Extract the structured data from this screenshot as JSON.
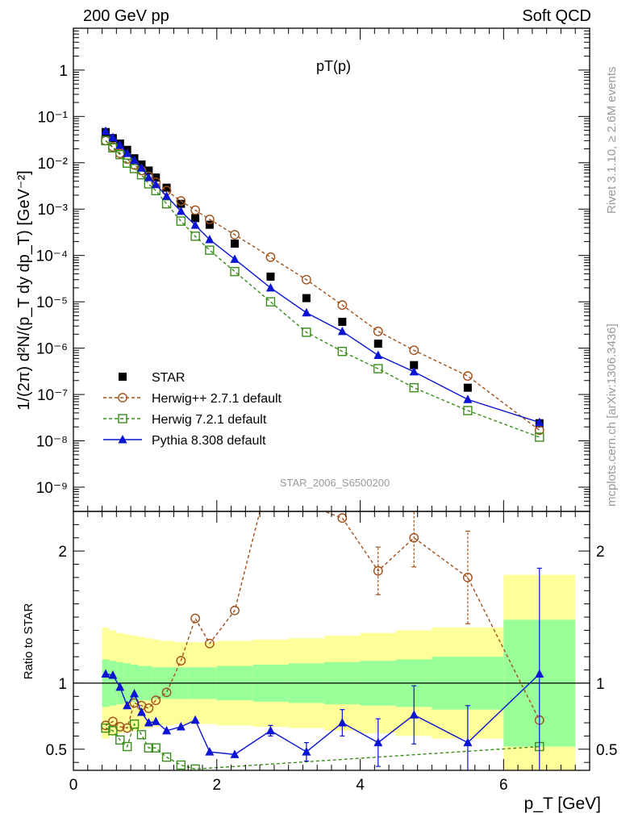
{
  "header": {
    "left": "200 GeV pp",
    "right": "Soft QCD"
  },
  "side_labels": {
    "rivet": "Rivet 3.1.10, ≥ 2.6M events",
    "mcplots": "mcplots.cern.ch [arXiv:1306.3436]"
  },
  "plot_title": "pT(p)",
  "watermark": "STAR_2006_S6500200",
  "colors": {
    "star": "#000000",
    "herwigpp": "#a0501a",
    "herwig7": "#3a8c1c",
    "pythia": "#0a14d2",
    "band_yellow": "#ffff99",
    "band_green": "#99ff99"
  },
  "chart_data": [
    {
      "type": "scatter",
      "panel": "main",
      "ylabel": "1/(2π) d²N/(p_T dy dp_T) [GeV⁻²]",
      "yscale": "log",
      "xlim": [
        0,
        7.2
      ],
      "ylim": [
        3e-10,
        8
      ],
      "y_tick_labels": [
        "10⁻⁹",
        "10⁻⁸",
        "10⁻⁷",
        "10⁻⁶",
        "10⁻⁵",
        "10⁻⁴",
        "10⁻³",
        "10⁻²",
        "10⁻¹",
        "1"
      ],
      "legend_position": "lower-left",
      "series": [
        {
          "name": "STAR",
          "style": "marker-square",
          "x": [
            0.45,
            0.55,
            0.65,
            0.75,
            0.85,
            0.95,
            1.05,
            1.15,
            1.3,
            1.5,
            1.7,
            1.9,
            2.25,
            2.75,
            3.25,
            3.75,
            4.25,
            4.75,
            5.5,
            6.5
          ],
          "y": [
            0.046,
            0.034,
            0.026,
            0.019,
            0.0125,
            0.0092,
            0.0068,
            0.0048,
            0.0029,
            0.0013,
            0.00064,
            0.00046,
            0.00018,
            3.5e-05,
            1.2e-05,
            3.7e-06,
            1.25e-06,
            4.3e-07,
            1.4e-07,
            2.4e-08
          ]
        },
        {
          "name": "Herwig++ 2.7.1 default",
          "style": "dashed-open-circle",
          "x": [
            0.45,
            0.55,
            0.65,
            0.75,
            0.85,
            0.95,
            1.05,
            1.15,
            1.3,
            1.5,
            1.7,
            1.9,
            2.25,
            2.75,
            3.25,
            3.75,
            4.25,
            4.75,
            5.5,
            6.5
          ],
          "y": [
            0.03,
            0.022,
            0.016,
            0.012,
            0.009,
            0.0068,
            0.0051,
            0.0038,
            0.0025,
            0.0015,
            0.00095,
            0.0006,
            0.00028,
            9.2e-05,
            3e-05,
            8.5e-06,
            2.3e-06,
            9e-07,
            2.5e-07,
            1.7e-08
          ]
        },
        {
          "name": "Herwig 7.2.1 default",
          "style": "dashed-open-square",
          "x": [
            0.45,
            0.55,
            0.65,
            0.75,
            0.85,
            0.95,
            1.05,
            1.15,
            1.3,
            1.5,
            1.7,
            1.9,
            2.25,
            2.75,
            3.25,
            3.75,
            4.25,
            4.75,
            5.5,
            6.5
          ],
          "y": [
            0.03,
            0.021,
            0.015,
            0.0098,
            0.0075,
            0.0055,
            0.0035,
            0.0025,
            0.0013,
            0.00055,
            0.00026,
            0.00013,
            4.5e-05,
            1e-05,
            2.2e-06,
            8.5e-07,
            3.6e-07,
            1.4e-07,
            4.5e-08,
            1.2e-08
          ]
        },
        {
          "name": "Pythia 8.308 default",
          "style": "solid-filled-triangle",
          "x": [
            0.45,
            0.55,
            0.65,
            0.75,
            0.85,
            0.95,
            1.05,
            1.15,
            1.3,
            1.5,
            1.7,
            1.9,
            2.25,
            2.75,
            3.25,
            3.75,
            4.25,
            4.75,
            5.5,
            6.5
          ],
          "y": [
            0.048,
            0.035,
            0.024,
            0.016,
            0.0113,
            0.0077,
            0.0048,
            0.0034,
            0.0019,
            0.0009,
            0.00045,
            0.00022,
            8.3e-05,
            2e-05,
            5.8e-06,
            2.3e-06,
            7e-07,
            3.1e-07,
            7.8e-08,
            2.5e-08
          ]
        }
      ]
    },
    {
      "type": "line",
      "panel": "ratio",
      "ylabel": "Ratio to STAR",
      "xlabel": "p_T [GeV]",
      "xlim": [
        0,
        7.2
      ],
      "ylim": [
        0.34,
        2.3
      ],
      "x_ticks": [
        0,
        2,
        4,
        6
      ],
      "y_ticks": [
        0.5,
        1,
        2
      ],
      "reference_line": 1,
      "band_bins": {
        "edges": [
          0.4,
          0.5,
          0.6,
          0.7,
          0.8,
          0.9,
          1.0,
          1.1,
          1.2,
          1.4,
          1.6,
          1.8,
          2.0,
          2.5,
          3.0,
          3.5,
          4.0,
          4.5,
          5.0,
          6.0,
          7.0
        ],
        "yellow_half_width": [
          0.42,
          0.4,
          0.38,
          0.37,
          0.36,
          0.35,
          0.34,
          0.33,
          0.32,
          0.31,
          0.31,
          0.31,
          0.32,
          0.33,
          0.34,
          0.36,
          0.38,
          0.4,
          0.42,
          0.82
        ],
        "green_half_width": [
          0.18,
          0.17,
          0.16,
          0.15,
          0.14,
          0.13,
          0.13,
          0.12,
          0.12,
          0.12,
          0.12,
          0.12,
          0.13,
          0.14,
          0.15,
          0.16,
          0.17,
          0.18,
          0.2,
          0.48
        ]
      },
      "series": [
        {
          "name": "Herwig++ 2.7.1 default",
          "x": [
            0.45,
            0.55,
            0.65,
            0.75,
            0.85,
            0.95,
            1.05,
            1.15,
            1.3,
            1.5,
            1.7,
            1.9,
            2.25,
            2.75,
            3.25,
            3.75,
            4.25,
            4.75,
            5.5,
            6.5
          ],
          "y": [
            0.68,
            0.71,
            0.67,
            0.66,
            0.85,
            0.83,
            0.81,
            0.87,
            0.93,
            1.17,
            1.49,
            1.3,
            1.55,
            2.62,
            2.35,
            2.25,
            1.85,
            2.1,
            1.8,
            0.72
          ],
          "err": [
            0,
            0,
            0,
            0,
            0,
            0,
            0,
            0,
            0,
            0,
            0,
            0,
            0,
            0,
            0,
            0,
            0.18,
            0.22,
            0.35,
            0
          ]
        },
        {
          "name": "Herwig 7.2.1 default",
          "x": [
            0.45,
            0.55,
            0.65,
            0.75,
            0.85,
            0.95,
            1.05,
            1.15,
            1.3,
            1.5,
            1.7,
            6.5
          ],
          "y": [
            0.66,
            0.64,
            0.57,
            0.52,
            0.69,
            0.61,
            0.51,
            0.51,
            0.44,
            0.38,
            0.35,
            0.52
          ],
          "err": [
            0,
            0,
            0,
            0,
            0,
            0,
            0,
            0,
            0,
            0,
            0,
            0
          ]
        },
        {
          "name": "Pythia 8.308 default",
          "x": [
            0.45,
            0.55,
            0.65,
            0.75,
            0.85,
            0.95,
            1.05,
            1.15,
            1.3,
            1.5,
            1.7,
            1.9,
            2.25,
            2.75,
            3.25,
            3.75,
            4.25,
            4.75,
            5.5,
            6.5
          ],
          "y": [
            1.07,
            1.06,
            0.97,
            0.83,
            0.92,
            0.78,
            0.7,
            0.71,
            0.64,
            0.67,
            0.72,
            0.48,
            0.46,
            0.64,
            0.48,
            0.7,
            0.55,
            0.76,
            0.55,
            1.07
          ],
          "err": [
            0,
            0,
            0,
            0,
            0,
            0,
            0,
            0,
            0,
            0,
            0,
            0,
            0,
            0.04,
            0.07,
            0.1,
            0.18,
            0.22,
            0.28,
            0.8
          ]
        }
      ]
    }
  ]
}
